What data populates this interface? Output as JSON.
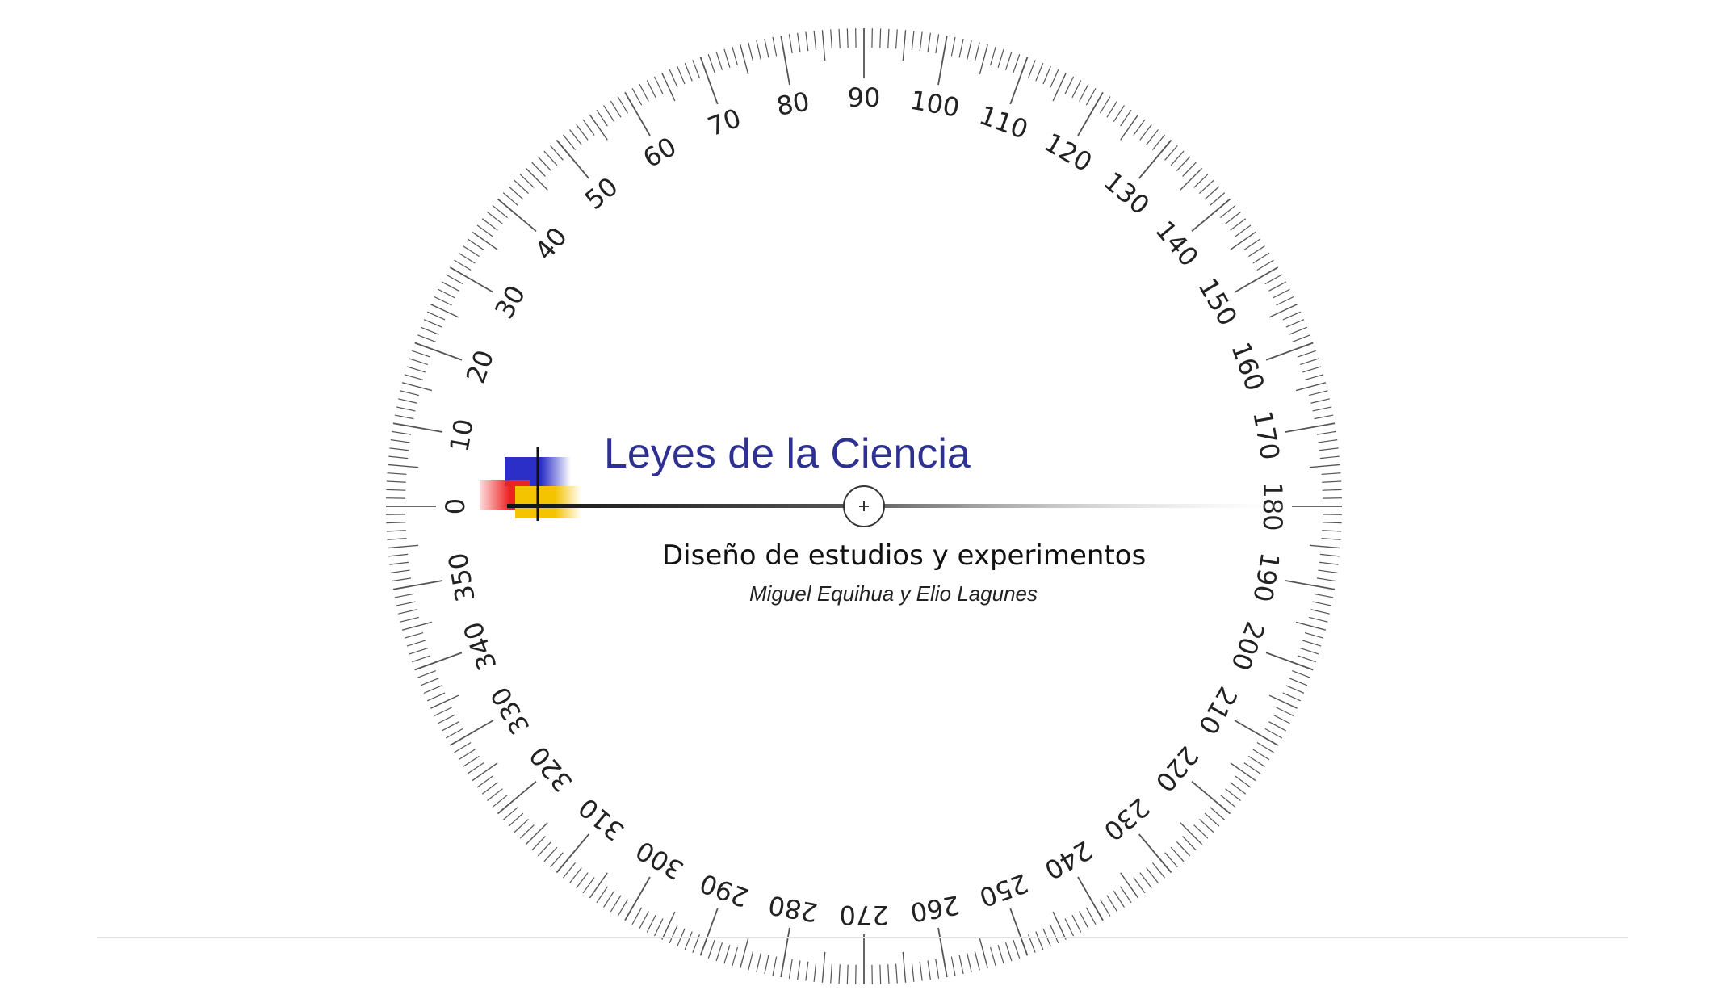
{
  "slide": {
    "title": "Leyes de la Ciencia",
    "subtitle": "Diseño de estudios y experimentos",
    "authors": "Miguel Equihua y Elio Lagunes"
  },
  "protractor": {
    "labels": [
      "0",
      "10",
      "20",
      "30",
      "40",
      "50",
      "60",
      "70",
      "80",
      "90",
      "100",
      "110",
      "120",
      "130",
      "140",
      "150",
      "160",
      "170",
      "180",
      "190",
      "200",
      "210",
      "220",
      "230",
      "240",
      "250",
      "260",
      "270",
      "280",
      "290",
      "300",
      "310",
      "320",
      "330",
      "340",
      "350"
    ],
    "center_button_icon": "plus-icon"
  },
  "colors": {
    "title": "#2e3192",
    "logo_blue": "#2b2fc8",
    "logo_red": "#ee2222",
    "logo_yellow": "#f5c400",
    "ticks": "#555555"
  }
}
